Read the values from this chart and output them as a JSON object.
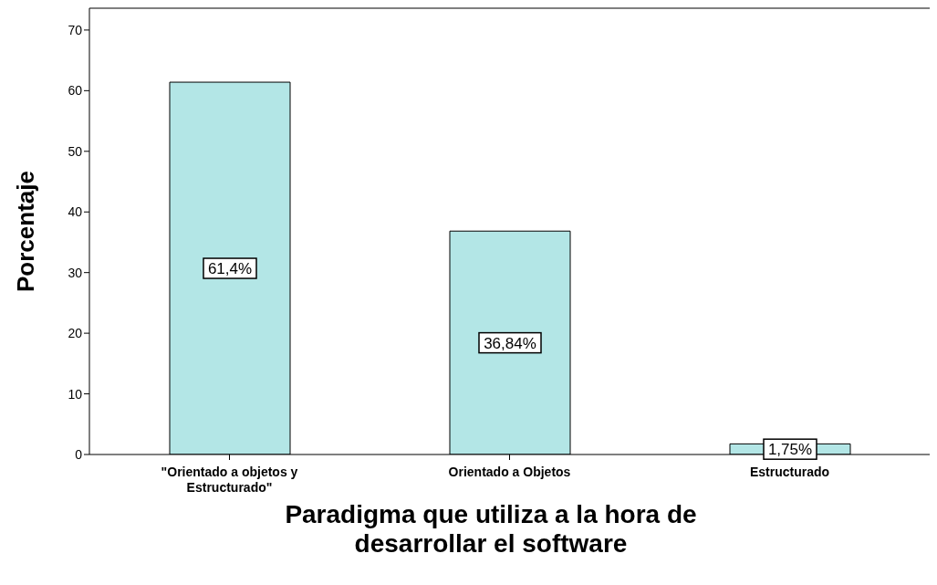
{
  "chart_data": {
    "type": "bar",
    "categories": [
      "\"Orientado a objetos y Estructurado\"",
      "Orientado a Objetos",
      "Estructurado"
    ],
    "values": [
      61.4,
      36.84,
      1.75
    ],
    "value_labels": [
      "61,4%",
      "36,84%",
      "1,75%"
    ],
    "color": "#b3e6e6",
    "ylim": [
      0,
      73.6
    ],
    "yticks": [
      0,
      10,
      20,
      30,
      40,
      50,
      60,
      70
    ],
    "ylabel": "Porcentaje",
    "xlabel": "Paradigma que utiliza a la hora de desarrollar el software",
    "grid": false,
    "legend": false
  }
}
